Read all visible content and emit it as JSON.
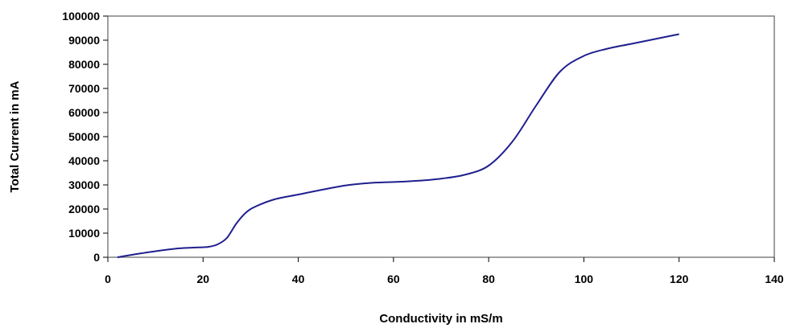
{
  "chart_data": {
    "type": "line",
    "title": "",
    "xlabel": "Conductivity in mS/m",
    "ylabel": "Total Current in mA",
    "xlim": [
      0,
      140
    ],
    "ylim": [
      0,
      100000
    ],
    "x_ticks": [
      0,
      20,
      40,
      60,
      80,
      100,
      120,
      140
    ],
    "y_ticks": [
      0,
      10000,
      20000,
      30000,
      40000,
      50000,
      60000,
      70000,
      80000,
      90000,
      100000
    ],
    "grid": false,
    "legend": "none",
    "line_color": "#1f1f8f",
    "series": [
      {
        "x": [
          2,
          5,
          10,
          15,
          18,
          21,
          23,
          25,
          27,
          29,
          31,
          35,
          40,
          45,
          50,
          55,
          60,
          65,
          70,
          75,
          80,
          85,
          90,
          95,
          100,
          105,
          110,
          115,
          120
        ],
        "y": [
          0,
          1000,
          2500,
          3700,
          4000,
          4300,
          5300,
          8000,
          14000,
          18500,
          21000,
          24000,
          26000,
          28000,
          29800,
          30800,
          31200,
          31700,
          32600,
          34200,
          38000,
          48000,
          63000,
          77000,
          83500,
          86500,
          88500,
          90500,
          92500
        ]
      }
    ]
  }
}
